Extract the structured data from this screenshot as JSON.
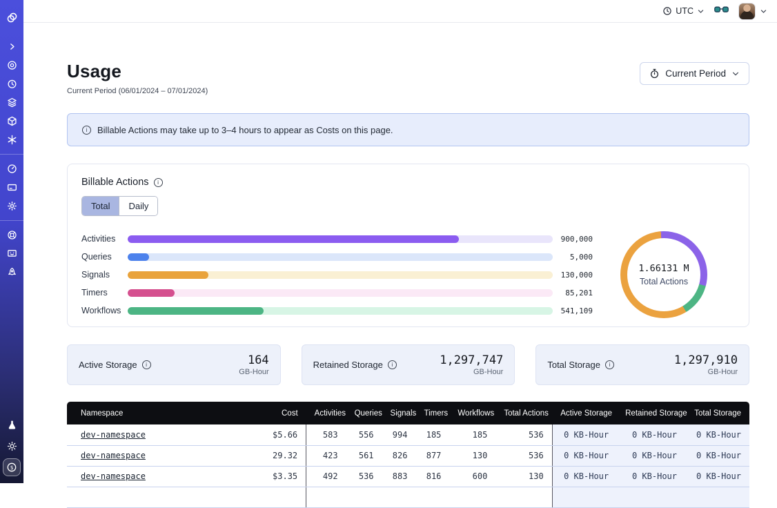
{
  "topbar": {
    "timezone": "UTC",
    "icons": [
      "clock-icon",
      "chevron-down-icon",
      "glasses-icon",
      "user-avatar",
      "chevron-down-icon"
    ]
  },
  "sidebar": {
    "icons": [
      "temporal-logo",
      "chevron-right",
      "namespaces",
      "schedules",
      "layers",
      "deployments-cube",
      "nexus-asterisk",
      "usage-gauge",
      "billing-card",
      "settings-gear",
      "support-lifebuoy",
      "getting-started-terminal",
      "quickstart-rocket",
      "labs-flask",
      "theme-sun",
      "costs-coin"
    ],
    "active_icon": "costs-coin"
  },
  "page": {
    "title": "Usage",
    "subtitle": "Current Period (06/01/2024 – 07/01/2024)",
    "period_button_label": "Current Period"
  },
  "banner": {
    "text": "Billable Actions may take up to 3–4 hours to appear as Costs on this page."
  },
  "billable_actions": {
    "title": "Billable Actions",
    "tabs": [
      {
        "label": "Total",
        "selected": true
      },
      {
        "label": "Daily",
        "selected": false
      }
    ]
  },
  "chart_data": [
    {
      "type": "bar",
      "orientation": "horizontal",
      "title": "Billable Actions (Total)",
      "categories": [
        "Activities",
        "Queries",
        "Signals",
        "Timers",
        "Workflows"
      ],
      "values": [
        900000,
        5000,
        130000,
        85201,
        541109
      ],
      "value_labels": [
        "900,000",
        "5,000",
        "130,000",
        "85,201",
        "541,109"
      ],
      "fill_pct": [
        78,
        5,
        19,
        11,
        32
      ],
      "bar_colors": [
        "#8b5cf0",
        "#4d82ec",
        "#e9a33c",
        "#d5508f",
        "#4cb584"
      ],
      "track_colors": [
        "#e9e5fb",
        "#dbe6fa",
        "#faf0d4",
        "#fbe9f6",
        "#d7f5e5"
      ],
      "grid": false,
      "legend": false
    },
    {
      "type": "pie",
      "donut": true,
      "center_value": "1.66131 M",
      "center_label": "Total Actions",
      "rotate_deg": -4,
      "segments": [
        {
          "name": "purple",
          "color": "#8b63e8",
          "start_deg": 0,
          "end_deg": 109
        },
        {
          "name": "green",
          "color": "#4db584",
          "start_deg": 109,
          "end_deg": 153
        },
        {
          "name": "orange",
          "color": "#eba23f",
          "start_deg": 153,
          "end_deg": 360
        }
      ]
    }
  ],
  "storage_cards": [
    {
      "label": "Active Storage",
      "value": "164",
      "unit": "GB-Hour"
    },
    {
      "label": "Retained Storage",
      "value": "1,297,747",
      "unit": "GB-Hour"
    },
    {
      "label": "Total Storage",
      "value": "1,297,910",
      "unit": "GB-Hour"
    }
  ],
  "table": {
    "columns": [
      "Namespace",
      "Cost",
      "Activities",
      "Queries",
      "Signals",
      "Timers",
      "Workflows",
      "Total Actions",
      "Active Storage",
      "Retained Storage",
      "Total Storage"
    ],
    "rows": [
      [
        "dev-namespace",
        "$5.66",
        "583",
        "556",
        "994",
        "185",
        "185",
        "536",
        "0 KB-Hour",
        "0 KB-Hour",
        "0 KB-Hour"
      ],
      [
        "dev-namespace",
        "29.32",
        "423",
        "561",
        "826",
        "877",
        "130",
        "536",
        "0 KB-Hour",
        "0 KB-Hour",
        "0 KB-Hour"
      ],
      [
        "dev-namespace",
        "$3.35",
        "492",
        "536",
        "883",
        "816",
        "600",
        "130",
        "0 KB-Hour",
        "0 KB-Hour",
        "0 KB-Hour"
      ]
    ]
  }
}
